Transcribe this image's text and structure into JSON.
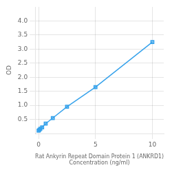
{
  "chart_data": {
    "type": "line",
    "x": [
      0.0,
      0.078,
      0.156,
      0.313,
      0.625,
      1.25,
      2.5,
      5.0,
      10.0
    ],
    "values": [
      0.1,
      0.13,
      0.17,
      0.22,
      0.35,
      0.55,
      0.95,
      1.65,
      3.25
    ],
    "marker": "square",
    "xlabel": [
      "Rat Ankyrin Repeat Domain Protein 1 (ANKRD1)",
      "Concentration (ng/ml)"
    ],
    "ylabel": "OD",
    "xlim": [
      -0.3,
      11
    ],
    "ylim": [
      0,
      4.5
    ],
    "xticks": [
      0,
      5,
      10
    ],
    "yticks": [
      0.5,
      {
        "value": 1.0,
        "label": "1.0"
      },
      1.5,
      {
        "value": 2.0,
        "label": "2.0"
      },
      2.5,
      {
        "value": 3.0,
        "label": "3.0"
      },
      3.5,
      {
        "value": 4.0,
        "label": "4.0"
      }
    ],
    "grid": true
  }
}
